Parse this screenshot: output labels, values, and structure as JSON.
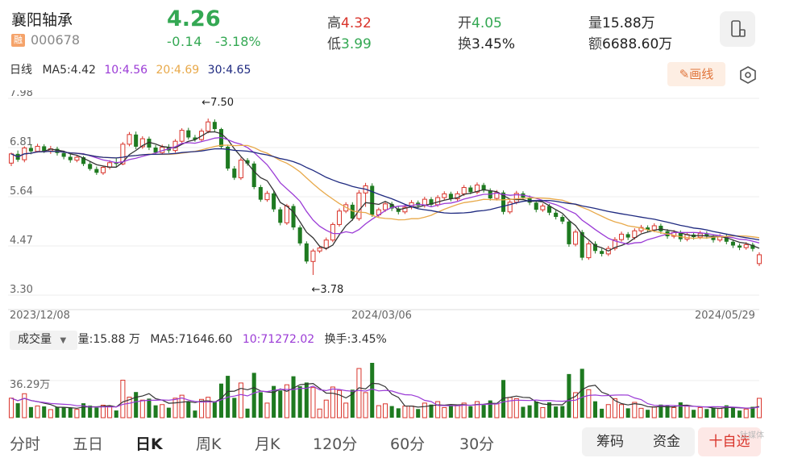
{
  "header": {
    "stock_name": "襄阳轴承",
    "exchange_badge": "融",
    "stock_code": "000678",
    "price": "4.26",
    "change": "-0.14",
    "change_pct": "-3.18%",
    "high_label": "高",
    "high": "4.32",
    "low_label": "低",
    "low": "3.99",
    "open_label": "开",
    "open": "4.05",
    "turnover_label": "换",
    "turnover": "3.45%",
    "volume_label": "量",
    "volume": "15.88万",
    "amount_label": "额",
    "amount": "6688.60万"
  },
  "ma_legend": {
    "period": "日线",
    "ma5": "MA5:4.42",
    "ma10": "10:4.56",
    "ma20": "20:4.69",
    "ma30": "30:4.65"
  },
  "toolbar": {
    "draw_label": "画线"
  },
  "chart_data": {
    "type": "candlestick",
    "y_ticks": [
      "7.98",
      "6.81",
      "5.64",
      "4.47",
      "3.30"
    ],
    "ylim": [
      3.3,
      7.98
    ],
    "x_labels": [
      "2023/12/08",
      "2024/03/06",
      "2024/05/29"
    ],
    "annotations": {
      "max": "←7.50",
      "min": "←3.78"
    },
    "colors": {
      "up": "#d9342b",
      "down": "#1e7a20",
      "ma5": "#333333",
      "ma10": "#9b3bd6",
      "ma20": "#e8a94a",
      "ma30": "#1f2a80"
    },
    "candles": [
      [
        6.44,
        6.66,
        6.37,
        6.69
      ],
      [
        6.66,
        6.52,
        6.47,
        6.74
      ],
      [
        6.52,
        6.8,
        6.46,
        6.84
      ],
      [
        6.8,
        6.72,
        6.65,
        6.88
      ],
      [
        6.72,
        6.84,
        6.69,
        6.9
      ],
      [
        6.84,
        6.73,
        6.68,
        6.89
      ],
      [
        6.73,
        6.78,
        6.66,
        6.85
      ],
      [
        6.78,
        6.68,
        6.62,
        6.83
      ],
      [
        6.68,
        6.59,
        6.53,
        6.73
      ],
      [
        6.59,
        6.51,
        6.45,
        6.65
      ],
      [
        6.51,
        6.58,
        6.46,
        6.63
      ],
      [
        6.58,
        6.42,
        6.37,
        6.61
      ],
      [
        6.42,
        6.3,
        6.26,
        6.48
      ],
      [
        6.3,
        6.21,
        6.16,
        6.36
      ],
      [
        6.21,
        6.34,
        6.16,
        6.38
      ],
      [
        6.34,
        6.45,
        6.29,
        6.51
      ],
      [
        6.45,
        6.42,
        6.36,
        6.55
      ],
      [
        6.42,
        6.89,
        6.39,
        6.94
      ],
      [
        6.89,
        7.12,
        6.84,
        7.18
      ],
      [
        7.12,
        6.83,
        6.77,
        7.19
      ],
      [
        6.83,
        7.02,
        6.78,
        7.08
      ],
      [
        7.02,
        6.81,
        6.75,
        7.07
      ],
      [
        6.81,
        6.69,
        6.64,
        6.87
      ],
      [
        6.69,
        6.82,
        6.64,
        6.88
      ],
      [
        6.82,
        6.74,
        6.68,
        6.89
      ],
      [
        6.74,
        6.96,
        6.69,
        7.01
      ],
      [
        6.96,
        7.22,
        6.91,
        7.27
      ],
      [
        7.22,
        7.05,
        7.0,
        7.28
      ],
      [
        7.05,
        7.0,
        6.95,
        7.11
      ],
      [
        7.0,
        7.2,
        6.95,
        7.26
      ],
      [
        7.2,
        7.42,
        7.15,
        7.5
      ],
      [
        7.42,
        7.25,
        7.19,
        7.48
      ],
      [
        7.25,
        6.83,
        6.77,
        7.28
      ],
      [
        6.83,
        6.31,
        6.26,
        6.88
      ],
      [
        6.31,
        6.09,
        6.04,
        6.37
      ],
      [
        6.09,
        6.51,
        6.04,
        6.57
      ],
      [
        6.51,
        6.43,
        6.38,
        6.56
      ],
      [
        6.43,
        5.87,
        5.82,
        6.48
      ],
      [
        5.87,
        5.57,
        5.52,
        5.92
      ],
      [
        5.57,
        5.72,
        5.52,
        5.78
      ],
      [
        5.72,
        5.34,
        5.28,
        5.77
      ],
      [
        5.34,
        5.02,
        4.96,
        5.39
      ],
      [
        5.02,
        5.42,
        4.97,
        5.47
      ],
      [
        5.42,
        4.91,
        4.85,
        5.47
      ],
      [
        4.91,
        4.53,
        4.48,
        4.96
      ],
      [
        4.53,
        4.1,
        4.05,
        4.58
      ],
      [
        4.1,
        4.35,
        3.78,
        4.4
      ],
      [
        4.35,
        4.42,
        4.3,
        4.48
      ],
      [
        4.42,
        4.61,
        4.37,
        4.67
      ],
      [
        4.61,
        4.98,
        4.56,
        5.03
      ],
      [
        4.98,
        5.3,
        4.93,
        5.36
      ],
      [
        5.3,
        5.45,
        5.25,
        5.51
      ],
      [
        5.45,
        5.12,
        5.07,
        5.51
      ],
      [
        5.12,
        5.73,
        5.07,
        5.8
      ],
      [
        5.73,
        5.9,
        5.4,
        5.97
      ],
      [
        5.9,
        5.21,
        5.16,
        5.96
      ],
      [
        5.21,
        5.33,
        5.16,
        5.38
      ],
      [
        5.33,
        5.47,
        5.28,
        5.53
      ],
      [
        5.47,
        5.36,
        5.3,
        5.52
      ],
      [
        5.36,
        5.28,
        5.22,
        5.41
      ],
      [
        5.28,
        5.39,
        5.23,
        5.45
      ],
      [
        5.39,
        5.5,
        5.34,
        5.56
      ],
      [
        5.5,
        5.43,
        5.37,
        5.55
      ],
      [
        5.43,
        5.58,
        5.38,
        5.64
      ],
      [
        5.58,
        5.45,
        5.39,
        5.63
      ],
      [
        5.45,
        5.62,
        5.4,
        5.68
      ],
      [
        5.62,
        5.71,
        5.57,
        5.77
      ],
      [
        5.71,
        5.59,
        5.53,
        5.76
      ],
      [
        5.59,
        5.71,
        5.54,
        5.77
      ],
      [
        5.71,
        5.86,
        5.66,
        5.92
      ],
      [
        5.86,
        5.75,
        5.7,
        5.91
      ],
      [
        5.75,
        5.92,
        5.7,
        5.98
      ],
      [
        5.92,
        5.79,
        5.74,
        5.97
      ],
      [
        5.79,
        5.6,
        5.55,
        5.84
      ],
      [
        5.6,
        5.74,
        5.55,
        5.8
      ],
      [
        5.74,
        5.28,
        5.22,
        5.79
      ],
      [
        5.28,
        5.51,
        5.23,
        5.56
      ],
      [
        5.51,
        5.72,
        5.46,
        5.78
      ],
      [
        5.72,
        5.62,
        5.56,
        5.77
      ],
      [
        5.62,
        5.5,
        5.44,
        5.67
      ],
      [
        5.5,
        5.33,
        5.27,
        5.55
      ],
      [
        5.33,
        5.42,
        5.28,
        5.48
      ],
      [
        5.42,
        5.26,
        5.2,
        5.47
      ],
      [
        5.26,
        5.16,
        5.1,
        5.32
      ],
      [
        5.16,
        5.05,
        4.99,
        5.21
      ],
      [
        5.05,
        4.51,
        4.45,
        5.1
      ],
      [
        4.51,
        4.8,
        4.46,
        4.86
      ],
      [
        4.8,
        4.19,
        4.13,
        4.85
      ],
      [
        4.19,
        4.52,
        4.14,
        4.58
      ],
      [
        4.52,
        4.35,
        4.29,
        4.58
      ],
      [
        4.35,
        4.28,
        4.22,
        4.41
      ],
      [
        4.28,
        4.41,
        4.23,
        4.47
      ],
      [
        4.41,
        4.62,
        4.36,
        4.68
      ],
      [
        4.62,
        4.75,
        4.57,
        4.81
      ],
      [
        4.75,
        4.67,
        4.61,
        4.8
      ],
      [
        4.67,
        4.83,
        4.62,
        4.89
      ],
      [
        4.83,
        4.91,
        4.78,
        4.97
      ],
      [
        4.91,
        4.85,
        4.79,
        4.96
      ],
      [
        4.85,
        4.95,
        4.8,
        5.01
      ],
      [
        4.95,
        4.82,
        4.76,
        5.0
      ],
      [
        4.82,
        4.7,
        4.64,
        4.87
      ],
      [
        4.7,
        4.79,
        4.65,
        4.85
      ],
      [
        4.79,
        4.63,
        4.57,
        4.84
      ],
      [
        4.63,
        4.74,
        4.58,
        4.8
      ],
      [
        4.74,
        4.68,
        4.62,
        4.79
      ],
      [
        4.68,
        4.77,
        4.63,
        4.83
      ],
      [
        4.77,
        4.7,
        4.64,
        4.82
      ],
      [
        4.7,
        4.61,
        4.55,
        4.75
      ],
      [
        4.61,
        4.69,
        4.56,
        4.75
      ],
      [
        4.69,
        4.57,
        4.51,
        4.74
      ],
      [
        4.57,
        4.48,
        4.42,
        4.62
      ],
      [
        4.48,
        4.43,
        4.37,
        4.53
      ],
      [
        4.43,
        4.5,
        4.38,
        4.56
      ],
      [
        4.5,
        4.4,
        4.34,
        4.55
      ],
      [
        4.05,
        4.26,
        3.99,
        4.32
      ]
    ]
  },
  "volume": {
    "selector": "成交量",
    "vol": "量:15.88 万",
    "ma5": "MA5:71646.60",
    "ma10": "10:71272.02",
    "turnover": "换手:3.45%",
    "y_tick": "36.29万"
  },
  "tabs": [
    "分时",
    "五日",
    "日K",
    "周K",
    "月K",
    "120分",
    "60分",
    "30分"
  ],
  "active_tab": "日K",
  "buttons": {
    "chips": "筹码",
    "funds": "资金",
    "add_watch": "十自选"
  },
  "watermark": "钛媒体"
}
